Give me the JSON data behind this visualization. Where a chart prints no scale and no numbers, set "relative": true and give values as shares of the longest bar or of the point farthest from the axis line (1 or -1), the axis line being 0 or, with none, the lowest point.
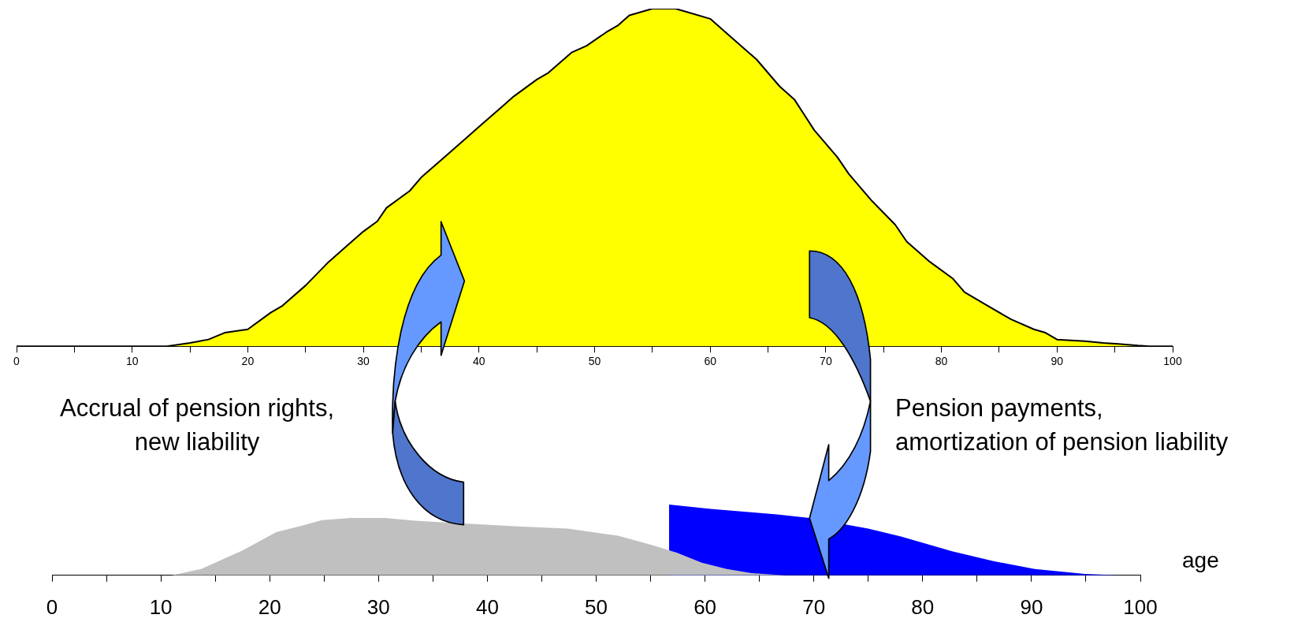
{
  "chart_data": [
    {
      "type": "area",
      "relative": true,
      "xlim": [
        0,
        100
      ],
      "xticks": [
        0,
        {
          "value": 5,
          "label": null
        },
        10,
        {
          "value": 15,
          "label": null
        },
        20,
        {
          "value": 25,
          "label": null
        },
        30,
        {
          "value": 35,
          "label": null
        },
        40,
        {
          "value": 45,
          "label": null
        },
        50,
        {
          "value": 55,
          "label": null
        },
        60,
        {
          "value": 65,
          "label": null
        },
        70,
        {
          "value": 75,
          "label": null
        },
        80,
        {
          "value": 85,
          "label": null
        },
        90,
        {
          "value": 95,
          "label": null
        },
        100
      ],
      "annotations": [
        "Accrual of pension rights,\nnew liability",
        "Pension payments,\namortization of pension liability"
      ],
      "legend": false,
      "series": [
        {
          "color": "#ffff00",
          "x": [
            0,
            13,
            15,
            16.6,
            18,
            20,
            22,
            23,
            25,
            27,
            28,
            30,
            31.2,
            32,
            34,
            35,
            37,
            39,
            40,
            42,
            43,
            45,
            46,
            48,
            49.3,
            51,
            52,
            53,
            55,
            57,
            58,
            60,
            61,
            63,
            64,
            66,
            67.3,
            69,
            71,
            72,
            74,
            76,
            77,
            79,
            81,
            82,
            84,
            86,
            88,
            89,
            90,
            92.4,
            94,
            95.3,
            97,
            98,
            100
          ],
          "values": [
            0,
            0,
            0.01,
            0.02,
            0.04,
            0.05,
            0.1,
            0.12,
            0.18,
            0.25,
            0.28,
            0.34,
            0.37,
            0.41,
            0.46,
            0.5,
            0.56,
            0.62,
            0.65,
            0.71,
            0.74,
            0.79,
            0.81,
            0.87,
            0.89,
            0.93,
            0.95,
            0.98,
            1,
            1,
            0.99,
            0.97,
            0.94,
            0.88,
            0.85,
            0.77,
            0.73,
            0.64,
            0.56,
            0.51,
            0.43,
            0.36,
            0.31,
            0.25,
            0.2,
            0.16,
            0.12,
            0.08,
            0.05,
            0.04,
            0.02,
            0.015,
            0.01,
            0.007,
            0.002,
            0,
            0
          ]
        }
      ]
    },
    {
      "type": "area",
      "relative": true,
      "xlabel": "age",
      "xlim": [
        0,
        100
      ],
      "xticks": [
        0,
        {
          "value": 5,
          "label": null
        },
        10,
        {
          "value": 15,
          "label": null
        },
        20,
        {
          "value": 25,
          "label": null
        },
        30,
        {
          "value": 35,
          "label": null
        },
        40,
        {
          "value": 45,
          "label": null
        },
        50,
        {
          "value": 55,
          "label": null
        },
        60,
        {
          "value": 65,
          "label": null
        },
        70,
        {
          "value": 75,
          "label": null
        },
        80,
        {
          "value": 85,
          "label": null
        },
        90,
        {
          "value": 95,
          "label": null
        },
        100
      ],
      "legend": false,
      "series": [
        {
          "color": "#c0c0c0",
          "x": [
            11,
            13.7,
            15.6,
            17.5,
            20.6,
            22.9,
            24.8,
            27.5,
            30.6,
            33.6,
            38.2,
            42.8,
            47.4,
            52,
            55.1,
            57.4,
            59.7,
            62,
            64.3,
            67.4
          ],
          "values": [
            0,
            0.09,
            0.22,
            0.35,
            0.61,
            0.7,
            0.78,
            0.81,
            0.81,
            0.77,
            0.73,
            0.69,
            0.66,
            0.56,
            0.43,
            0.32,
            0.18,
            0.09,
            0.03,
            0
          ]
        },
        {
          "color": "#0000ff",
          "x": [
            56.7,
            60.5,
            66.6,
            69.6,
            75,
            78,
            82.7,
            86.5,
            90.3,
            94.9,
            98
          ],
          "values": [
            1,
            0.94,
            0.86,
            0.81,
            0.66,
            0.55,
            0.34,
            0.2,
            0.09,
            0.02,
            0
          ]
        }
      ]
    }
  ]
}
